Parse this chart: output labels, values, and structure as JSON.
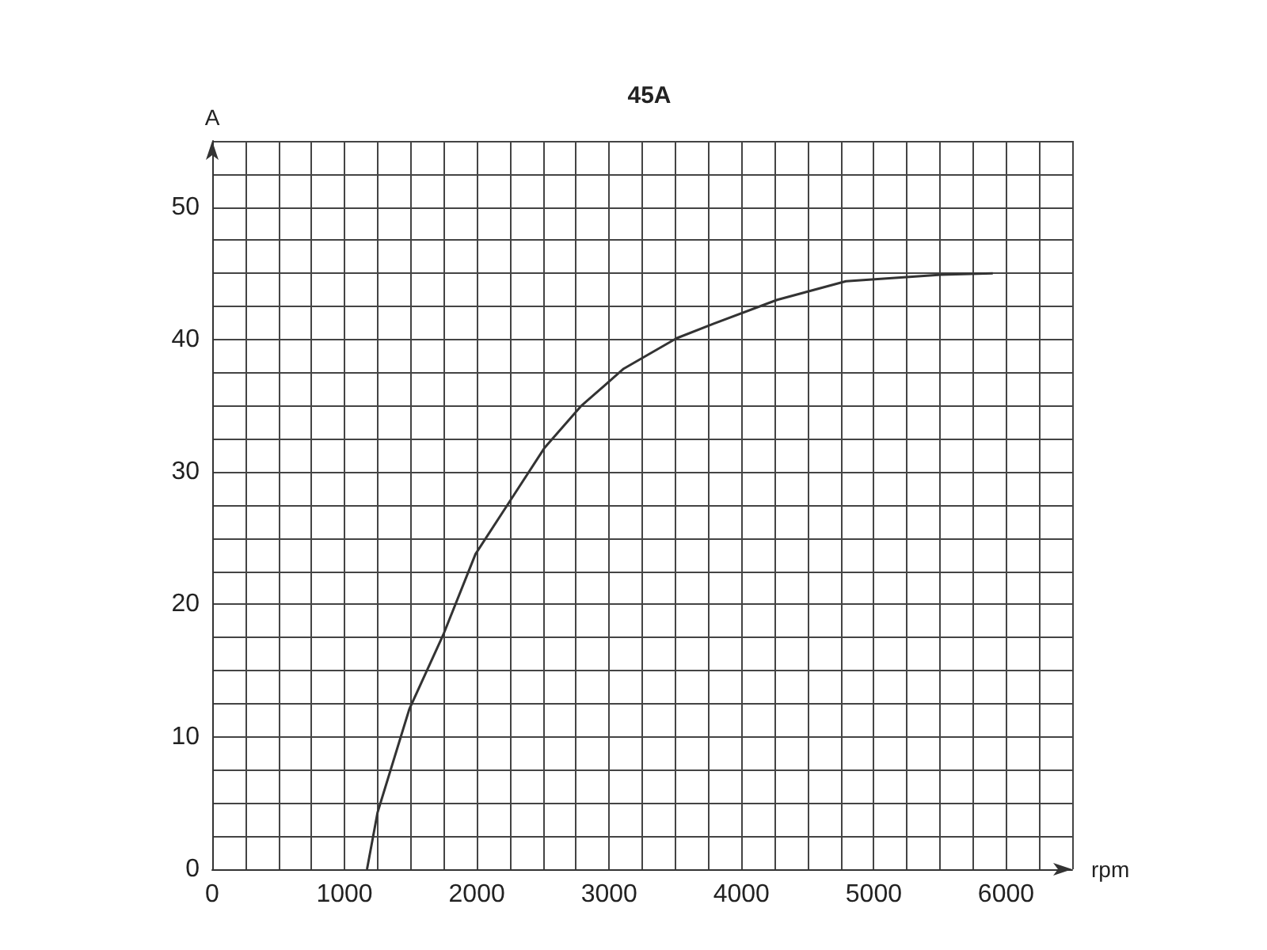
{
  "chart_data": {
    "type": "line",
    "title": "45A",
    "xlabel": "rpm",
    "ylabel": "A",
    "x": [
      1170,
      1250,
      1490,
      1750,
      1990,
      2250,
      2510,
      2790,
      3110,
      3510,
      3790,
      4270,
      4790,
      5510,
      5900
    ],
    "values": [
      0,
      4.3,
      12.1,
      17.8,
      23.8,
      27.8,
      31.8,
      35.0,
      37.8,
      40.1,
      41.2,
      43.0,
      44.4,
      44.9,
      45.0
    ],
    "color": "#333333",
    "marker": "none",
    "line_style": "solid",
    "xlim": [
      0,
      6500
    ],
    "xticks": [
      0,
      1000,
      2000,
      3000,
      4000,
      5000,
      6000
    ],
    "ylim": [
      0,
      55
    ],
    "yticks": [
      0,
      10,
      20,
      30,
      40,
      50
    ],
    "grid": true
  }
}
